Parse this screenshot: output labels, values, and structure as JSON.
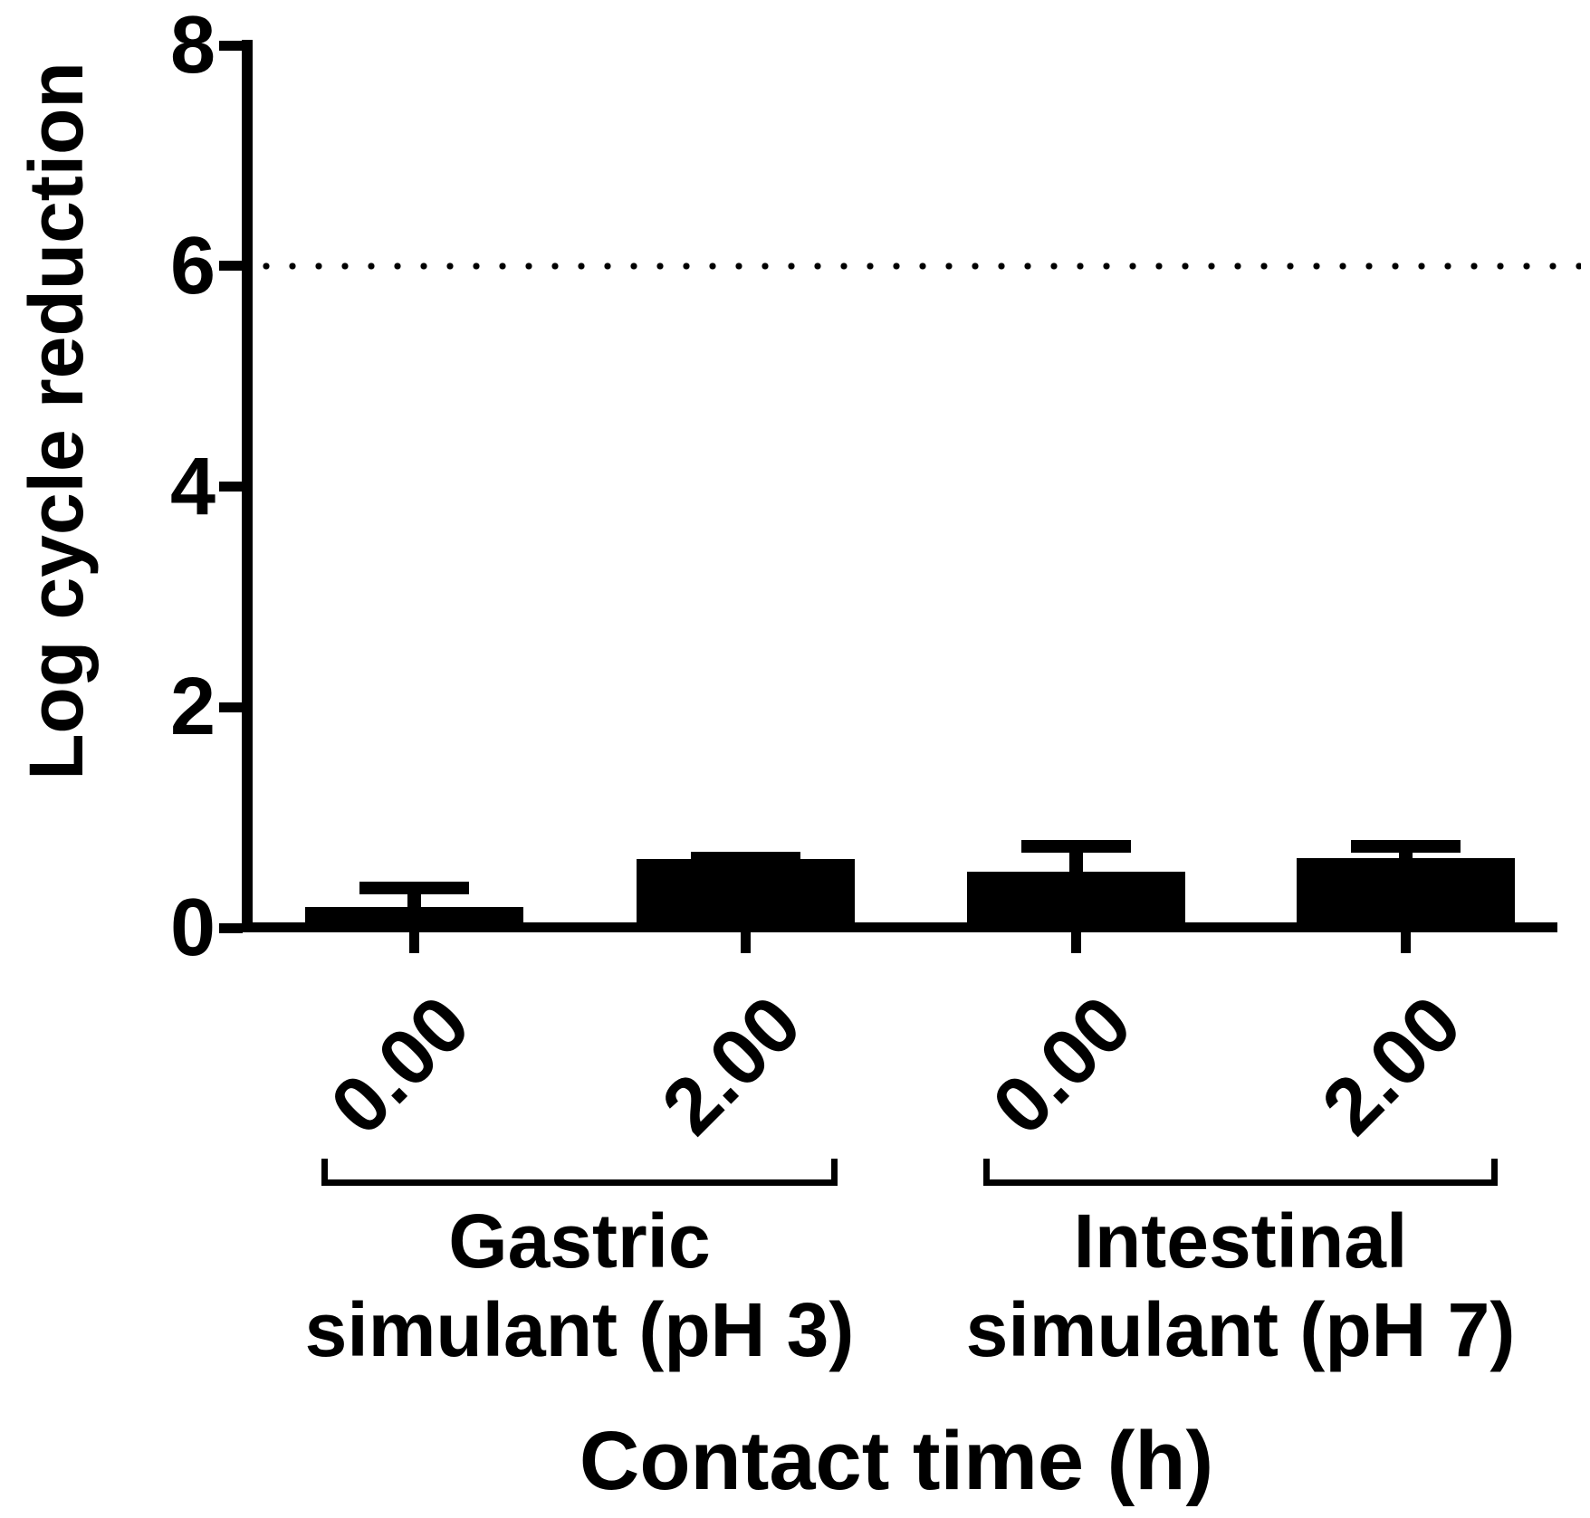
{
  "chart_data": {
    "type": "bar",
    "title": "",
    "xlabel": "Contact time (h)",
    "ylabel": "Log cycle reduction",
    "ylim": [
      0,
      8
    ],
    "yticks": [
      0,
      2,
      4,
      6,
      8
    ],
    "reference_line_y": 6,
    "reference_line_style": "dotted",
    "bar_color": "#000000",
    "background_color": "#ffffff",
    "legend": "none",
    "grid": "off",
    "categories": [
      "0.00",
      "2.00",
      "0.00",
      "2.00"
    ],
    "values": [
      0.19,
      0.62,
      0.51,
      0.63
    ],
    "errors_plus": [
      0.23,
      0.07,
      0.29,
      0.17
    ],
    "groups": [
      {
        "label_line1": "Gastric",
        "label_line2": "simulant (pH 3)",
        "bars": [
          {
            "x": "0.00",
            "value": 0.19,
            "error_plus": 0.23
          },
          {
            "x": "2.00",
            "value": 0.62,
            "error_plus": 0.07
          }
        ]
      },
      {
        "label_line1": "Intestinal",
        "label_line2": "simulant (pH 7)",
        "bars": [
          {
            "x": "0.00",
            "value": 0.51,
            "error_plus": 0.29
          },
          {
            "x": "2.00",
            "value": 0.63,
            "error_plus": 0.17
          }
        ]
      }
    ]
  }
}
